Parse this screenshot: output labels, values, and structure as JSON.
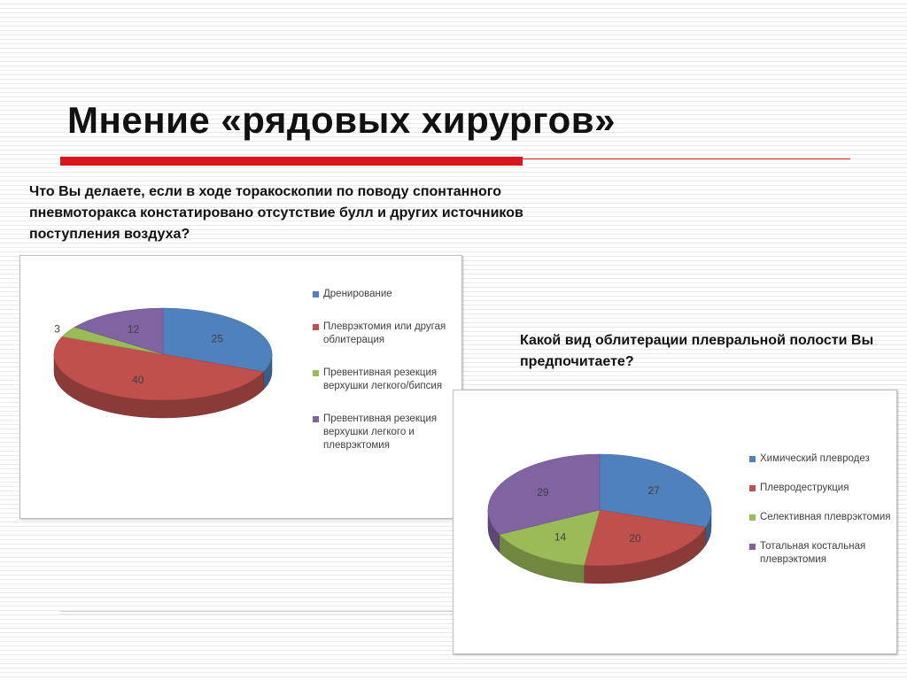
{
  "slide": {
    "title": "Мнение «рядовых хирургов»"
  },
  "questions": {
    "q1": "Что Вы делаете, если в ходе торакоскопии по поводу спонтанного пневмоторакса констатировано отсутствие булл и других источников поступления воздуха?",
    "q2": "Какой вид облитерации плевральной полости Вы предпочитаете?"
  },
  "colors": {
    "accent_red": "#d9141b",
    "blue": "#4f81bd",
    "red": "#c0504d",
    "green": "#9bbb59",
    "purple": "#8064a2"
  },
  "chart_data": [
    {
      "type": "pie",
      "style": "3d",
      "legend_position": "right",
      "categories": [
        "Дренирование",
        "Плеврэктомия или другая облитерация",
        "Превентивная резекция верхушки легкого/бипсия",
        "Превентивная резекция верхушки легкого и плеврэктомия"
      ],
      "values": [
        25,
        40,
        3,
        12
      ],
      "data_labels": [
        "25",
        "40",
        "3",
        "12"
      ],
      "colors": [
        "#4f81bd",
        "#c0504d",
        "#9bbb59",
        "#8064a2"
      ]
    },
    {
      "type": "pie",
      "style": "3d",
      "legend_position": "right",
      "categories": [
        "Химический плевродез",
        "Плевродеструкция",
        "Селективная плеврэктомия",
        "Тотальная костальная плеврэктомия"
      ],
      "values": [
        27,
        20,
        14,
        29
      ],
      "data_labels": [
        "27",
        "20",
        "14",
        "29"
      ],
      "colors": [
        "#4f81bd",
        "#c0504d",
        "#9bbb59",
        "#8064a2"
      ]
    }
  ]
}
